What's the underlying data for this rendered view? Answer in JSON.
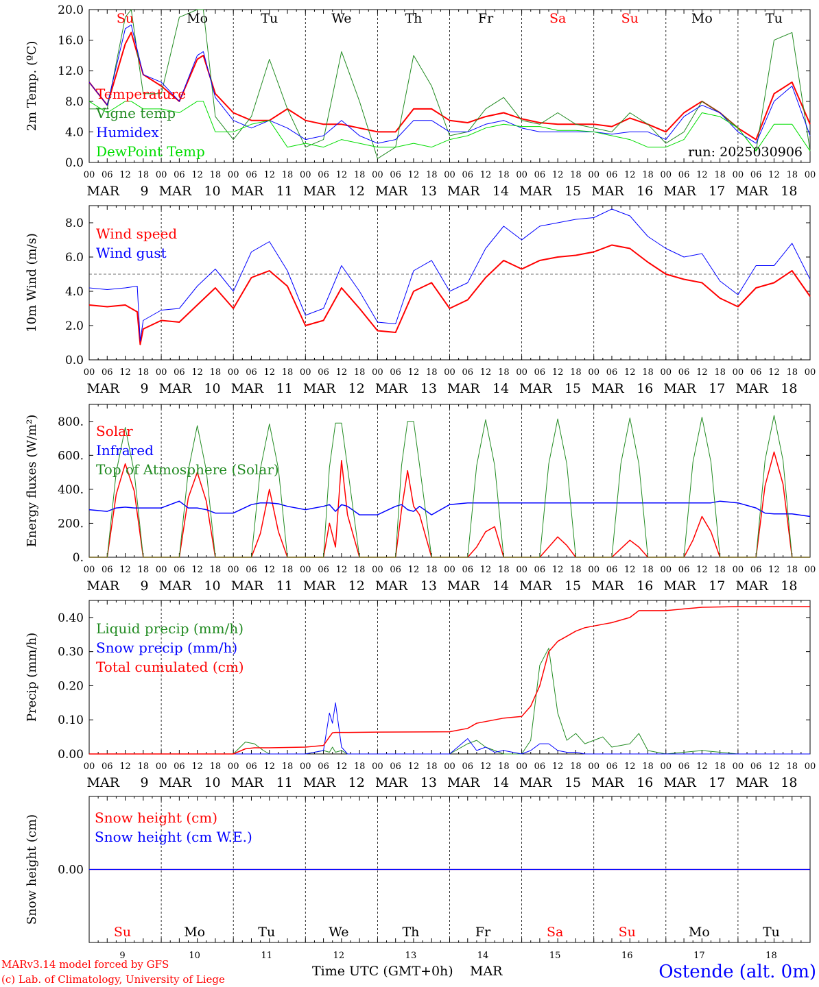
{
  "footer": {
    "credit_line1": "MARv3.14 model forced by GFS",
    "credit_line2": "(c) Lab. of Climatology, University of Liege",
    "xlabel": "Time UTC (GMT+0h)",
    "month": "MAR",
    "station": "Ostende (alt. 0m)"
  },
  "colors": {
    "red": "#ff0000",
    "blue": "#0000ff",
    "green": "#228b22",
    "lightgreen": "#00dd00",
    "axis": "#000000",
    "grid": "#000000"
  },
  "days": [
    {
      "day": 9,
      "dow": "Su",
      "weekend": true
    },
    {
      "day": 10,
      "dow": "Mo",
      "weekend": false
    },
    {
      "day": 11,
      "dow": "Tu",
      "weekend": false
    },
    {
      "day": 12,
      "dow": "We",
      "weekend": false
    },
    {
      "day": 13,
      "dow": "Th",
      "weekend": false
    },
    {
      "day": 14,
      "dow": "Fr",
      "weekend": false
    },
    {
      "day": 15,
      "dow": "Sa",
      "weekend": true
    },
    {
      "day": 16,
      "dow": "Su",
      "weekend": true
    },
    {
      "day": 17,
      "dow": "Mo",
      "weekend": false
    },
    {
      "day": 18,
      "dow": "Tu",
      "weekend": false
    }
  ],
  "hour_ticks": [
    "00",
    "06",
    "12",
    "18"
  ],
  "end_tick": "00",
  "chart_data": [
    {
      "type": "line",
      "ylabel": "2m Temp. (ºC)",
      "ylim": [
        0,
        20
      ],
      "yticks": [
        0,
        4,
        8,
        12,
        16,
        20
      ],
      "ytick_labels": [
        "0.0",
        "4.0",
        "8.0",
        "12.0",
        "16.0",
        "20.0"
      ],
      "annotation": "run: 2025030906",
      "dow_on_top": true,
      "x_hours": [
        0,
        6,
        12,
        14,
        18,
        24,
        30,
        36,
        38,
        42,
        48,
        54,
        60,
        66,
        72,
        78,
        84,
        90,
        96,
        102,
        108,
        114,
        120,
        126,
        132,
        138,
        144,
        150,
        156,
        162,
        168,
        174,
        180,
        186,
        192,
        198,
        204,
        210,
        216,
        222,
        228,
        234,
        240
      ],
      "series": [
        {
          "name": "Temperature",
          "color": "red",
          "width": 2,
          "values": [
            10.5,
            7.5,
            15.5,
            17.0,
            11.5,
            10.0,
            8.0,
            13.5,
            14.0,
            9.0,
            6.5,
            5.5,
            5.5,
            7.0,
            5.5,
            5.0,
            5.0,
            4.5,
            4.0,
            4.0,
            7.0,
            7.0,
            5.5,
            5.2,
            6.0,
            6.5,
            5.7,
            5.2,
            5.0,
            5.0,
            5.0,
            4.7,
            5.8,
            5.0,
            4.0,
            6.5,
            8.0,
            6.5,
            4.5,
            3.0,
            9.0,
            10.5,
            5.0
          ]
        },
        {
          "name": "Vigne temp",
          "color": "green",
          "width": 1,
          "values": [
            7.0,
            7.0,
            19.0,
            20.0,
            9.0,
            9.0,
            19.0,
            20.0,
            20.0,
            6.0,
            3.0,
            6.0,
            13.5,
            7.0,
            2.0,
            3.0,
            14.5,
            8.0,
            0.5,
            2.0,
            14.0,
            10.0,
            3.5,
            4.0,
            7.0,
            8.5,
            5.5,
            5.0,
            6.5,
            5.0,
            4.5,
            4.0,
            6.5,
            5.0,
            2.5,
            4.0,
            8.0,
            6.5,
            4.5,
            1.5,
            16.0,
            17.0,
            1.5
          ]
        },
        {
          "name": "Humidex",
          "color": "blue",
          "width": 1,
          "values": [
            10.5,
            7.5,
            17.5,
            18.0,
            11.5,
            10.5,
            8.0,
            14.0,
            14.5,
            8.5,
            5.5,
            4.5,
            5.5,
            4.5,
            3.0,
            3.5,
            5.5,
            3.5,
            2.5,
            3.0,
            5.5,
            5.5,
            4.0,
            4.0,
            5.0,
            5.5,
            4.5,
            4.0,
            4.0,
            4.0,
            4.0,
            3.7,
            4.0,
            4.0,
            3.0,
            6.0,
            7.5,
            6.5,
            4.0,
            2.5,
            8.0,
            10.0,
            3.5
          ]
        },
        {
          "name": "DewPoint Temp",
          "color": "lightgreen",
          "width": 1,
          "values": [
            8.0,
            6.5,
            8.0,
            8.0,
            7.0,
            7.0,
            6.5,
            8.0,
            8.0,
            4.0,
            4.0,
            5.0,
            5.5,
            2.0,
            2.5,
            2.0,
            3.0,
            2.5,
            2.0,
            2.0,
            2.5,
            2.0,
            3.0,
            3.5,
            4.5,
            5.0,
            4.7,
            4.7,
            4.2,
            4.2,
            4.0,
            3.5,
            3.0,
            2.0,
            2.0,
            3.0,
            6.5,
            6.0,
            4.5,
            1.5,
            5.0,
            5.0,
            1.5
          ]
        }
      ]
    },
    {
      "type": "line",
      "ylabel": "10m Wind (m/s)",
      "ylim": [
        0,
        9
      ],
      "yticks": [
        0,
        2,
        4,
        6,
        8
      ],
      "ytick_labels": [
        "0.0",
        "2.0",
        "4.0",
        "6.0",
        "8.0"
      ],
      "hline": 5,
      "x_hours": [
        0,
        6,
        12,
        16,
        17,
        18,
        24,
        30,
        36,
        42,
        48,
        54,
        60,
        66,
        72,
        78,
        84,
        90,
        96,
        102,
        108,
        114,
        120,
        126,
        132,
        138,
        144,
        150,
        156,
        162,
        168,
        174,
        180,
        186,
        192,
        198,
        204,
        210,
        216,
        222,
        228,
        234,
        240
      ],
      "series": [
        {
          "name": "Wind speed",
          "color": "red",
          "width": 2,
          "values": [
            3.2,
            3.1,
            3.2,
            2.8,
            0.9,
            1.8,
            2.3,
            2.2,
            3.2,
            4.2,
            3.0,
            4.8,
            5.2,
            4.3,
            2.0,
            2.3,
            4.2,
            3.0,
            1.7,
            1.6,
            4.0,
            4.5,
            3.0,
            3.5,
            4.8,
            5.8,
            5.3,
            5.8,
            6.0,
            6.1,
            6.3,
            6.7,
            6.5,
            5.7,
            5.0,
            4.7,
            4.5,
            3.6,
            3.1,
            4.2,
            4.5,
            5.2,
            3.7
          ]
        },
        {
          "name": "Wind gust",
          "color": "blue",
          "width": 1,
          "values": [
            4.2,
            4.1,
            4.2,
            4.3,
            1.1,
            2.3,
            2.9,
            3.0,
            4.3,
            5.3,
            4.0,
            6.3,
            6.9,
            5.2,
            2.6,
            3.0,
            5.5,
            4.0,
            2.2,
            2.1,
            5.2,
            5.8,
            4.0,
            4.5,
            6.5,
            7.8,
            7.0,
            7.8,
            8.0,
            8.2,
            8.3,
            8.8,
            8.4,
            7.2,
            6.5,
            6.0,
            6.2,
            4.6,
            3.8,
            5.5,
            5.5,
            6.8,
            4.7
          ]
        }
      ]
    },
    {
      "type": "line",
      "ylabel": "Energy fluxes (W/m²)",
      "ylim": [
        0,
        900
      ],
      "yticks": [
        0,
        200,
        400,
        600,
        800
      ],
      "ytick_labels": [
        "0.",
        "200.",
        "400.",
        "600.",
        "800."
      ],
      "x_hours": [
        0,
        6,
        9,
        12,
        15,
        18,
        24,
        30,
        33,
        36,
        39,
        42,
        48,
        54,
        57,
        60,
        63,
        66,
        72,
        78,
        80,
        82,
        84,
        86,
        90,
        96,
        102,
        104,
        106,
        108,
        110,
        114,
        120,
        126,
        129,
        132,
        135,
        138,
        144,
        150,
        153,
        156,
        159,
        162,
        168,
        174,
        177,
        180,
        183,
        186,
        192,
        198,
        201,
        204,
        207,
        210,
        216,
        222,
        225,
        228,
        231,
        234,
        240
      ],
      "series": [
        {
          "name": "Solar",
          "color": "red",
          "width": 1.5,
          "values": [
            0,
            0,
            370,
            550,
            390,
            0,
            0,
            0,
            350,
            500,
            330,
            0,
            0,
            0,
            140,
            400,
            150,
            0,
            0,
            0,
            200,
            60,
            570,
            250,
            0,
            0,
            0,
            280,
            510,
            300,
            250,
            0,
            0,
            0,
            60,
            150,
            180,
            0,
            0,
            0,
            60,
            120,
            70,
            0,
            0,
            0,
            50,
            100,
            60,
            0,
            0,
            0,
            100,
            240,
            150,
            0,
            0,
            0,
            420,
            620,
            430,
            0,
            0
          ]
        },
        {
          "name": "Infrared",
          "color": "blue",
          "width": 1.5,
          "values": [
            280,
            270,
            290,
            295,
            290,
            290,
            290,
            330,
            290,
            290,
            280,
            260,
            260,
            310,
            320,
            320,
            315,
            300,
            280,
            300,
            310,
            270,
            310,
            300,
            250,
            250,
            300,
            310,
            280,
            270,
            300,
            250,
            310,
            320,
            320,
            320,
            320,
            320,
            320,
            320,
            320,
            320,
            320,
            320,
            320,
            320,
            320,
            320,
            320,
            320,
            320,
            320,
            320,
            320,
            320,
            330,
            320,
            290,
            260,
            255,
            255,
            255,
            240
          ]
        },
        {
          "name": "Top of Atmosphere (Solar)",
          "color": "green",
          "width": 1,
          "values": [
            0,
            0,
            500,
            765,
            500,
            0,
            0,
            0,
            510,
            775,
            510,
            0,
            0,
            0,
            520,
            785,
            520,
            0,
            0,
            0,
            530,
            790,
            790,
            530,
            0,
            0,
            0,
            540,
            800,
            800,
            540,
            0,
            0,
            0,
            540,
            810,
            540,
            0,
            0,
            0,
            550,
            815,
            550,
            0,
            0,
            0,
            550,
            820,
            550,
            0,
            0,
            0,
            560,
            825,
            560,
            0,
            0,
            0,
            570,
            835,
            570,
            0,
            0
          ]
        }
      ]
    },
    {
      "type": "line",
      "ylabel": "Precip (mm/h)",
      "ylim": [
        0,
        0.45
      ],
      "yticks": [
        0,
        0.1,
        0.2,
        0.3,
        0.4
      ],
      "ytick_labels": [
        "0.00",
        "0.10",
        "0.20",
        "0.30",
        "0.40"
      ],
      "x_hours": [
        0,
        24,
        48,
        52,
        55,
        58,
        60,
        72,
        78,
        80,
        81,
        82,
        84,
        86,
        96,
        120,
        126,
        129,
        132,
        135,
        138,
        144,
        147,
        150,
        153,
        156,
        159,
        162,
        165,
        168,
        171,
        174,
        180,
        183,
        186,
        192,
        198,
        204,
        216,
        240
      ],
      "series": [
        {
          "name": "Liquid precip (mm/h)",
          "color": "green",
          "width": 1,
          "values": [
            0,
            0,
            0,
            0.035,
            0.03,
            0.01,
            0,
            0,
            0.01,
            0.005,
            0.02,
            0.005,
            0.01,
            0,
            0,
            0,
            0.03,
            0.04,
            0.02,
            0.01,
            0,
            0,
            0.04,
            0.26,
            0.31,
            0.12,
            0.04,
            0.06,
            0.03,
            0.04,
            0.05,
            0.02,
            0.03,
            0.06,
            0.01,
            0,
            0.005,
            0.01,
            0,
            0
          ]
        },
        {
          "name": "Snow precip (mm/h)",
          "color": "blue",
          "width": 1,
          "values": [
            0,
            0,
            0,
            0,
            0,
            0,
            0,
            0,
            0.01,
            0.12,
            0.09,
            0.15,
            0.02,
            0,
            0,
            0,
            0.045,
            0.01,
            0.02,
            0.005,
            0.01,
            0,
            0.01,
            0.03,
            0.03,
            0.01,
            0.005,
            0.005,
            0,
            0,
            0,
            0,
            0,
            0,
            0,
            0,
            0,
            0,
            0,
            0
          ]
        },
        {
          "name": "Total cumulated (cm)",
          "color": "red",
          "width": 1.5,
          "values": [
            0,
            0,
            0,
            0.015,
            0.018,
            0.018,
            0.018,
            0.02,
            0.025,
            0.05,
            0.062,
            0.063,
            0.063,
            0.063,
            0.064,
            0.065,
            0.075,
            0.09,
            0.095,
            0.1,
            0.105,
            0.11,
            0.14,
            0.2,
            0.3,
            0.33,
            0.345,
            0.36,
            0.37,
            0.375,
            0.38,
            0.385,
            0.4,
            0.42,
            0.42,
            0.42,
            0.425,
            0.43,
            0.432,
            0.432
          ]
        }
      ]
    },
    {
      "type": "line",
      "ylabel": "Snow height (cm)",
      "ylim": [
        -1,
        1
      ],
      "yticks": [
        0
      ],
      "ytick_labels": [
        "0.00"
      ],
      "dow_on_bottom": true,
      "x_hours": [
        0,
        240
      ],
      "series": [
        {
          "name": "Snow height (cm)",
          "color": "red",
          "width": 1.2,
          "values": [
            0,
            0
          ]
        },
        {
          "name": "Snow height (cm W.E.)",
          "color": "blue",
          "width": 1.2,
          "values": [
            0,
            0
          ]
        }
      ]
    }
  ]
}
